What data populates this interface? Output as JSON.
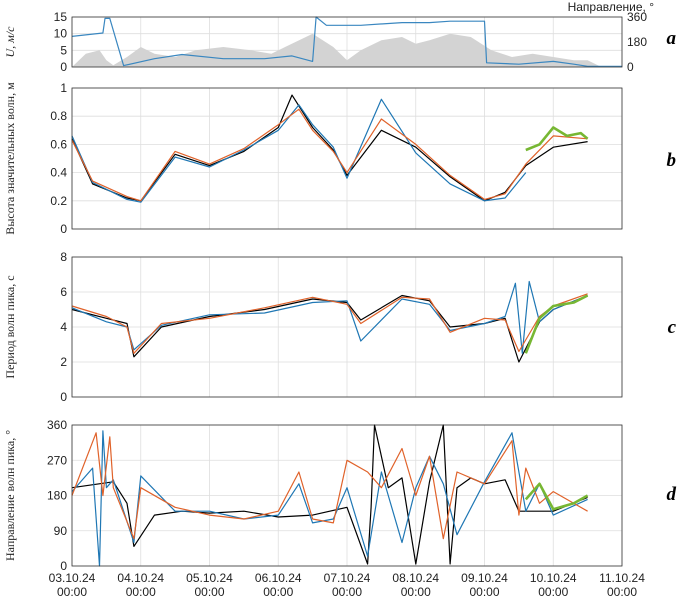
{
  "colors": {
    "black": "#000000",
    "blue": "#1f77b4",
    "orange": "#e0622a",
    "green": "#77b733",
    "fill": "#d3d3d3",
    "direction": "#3a87c0"
  },
  "x_ticks": [
    "03.10.24",
    "04.10.24",
    "05.10.24",
    "06.10.24",
    "07.10.24",
    "08.10.24",
    "09.10.24",
    "10.10.24",
    "11.10.24"
  ],
  "x_tick_time": "00:00",
  "panels": {
    "a": {
      "label": "a",
      "ylabel": "U, м/с",
      "ylabel2": "Направление, °",
      "yticks": [
        "0",
        "5",
        "10",
        "15"
      ],
      "yticks2": [
        "0",
        "180",
        "360"
      ]
    },
    "b": {
      "label": "b",
      "ylabel": "Высота значительных волн, м",
      "yticks": [
        "0",
        "0.2",
        "0.4",
        "0.6",
        "0.8",
        "1"
      ]
    },
    "c": {
      "label": "c",
      "ylabel": "Период волн пика, с",
      "yticks": [
        "0",
        "2",
        "4",
        "6",
        "8"
      ]
    },
    "d": {
      "label": "d",
      "ylabel": "Направление волн пика, °",
      "yticks": [
        "0",
        "90",
        "180",
        "270",
        "360"
      ]
    }
  },
  "chart_data": [
    {
      "type": "area",
      "panel": "a",
      "x_unit": "days since 03.10.24 00:00",
      "xlim": [
        0,
        8
      ],
      "ylim": [
        0,
        15
      ],
      "ylim2": [
        0,
        360
      ],
      "series": [
        {
          "name": "U",
          "axis": "left",
          "style": "area",
          "x": [
            0.0,
            0.2,
            0.4,
            0.5,
            0.6,
            0.8,
            1.0,
            1.2,
            1.5,
            1.8,
            2.2,
            2.6,
            2.9,
            3.1,
            3.5,
            3.8,
            4.0,
            4.2,
            4.5,
            4.8,
            5.0,
            5.2,
            5.5,
            5.8,
            6.1,
            6.4,
            6.7,
            7.0,
            7.3,
            7.5,
            7.7,
            8.0
          ],
          "y": [
            0,
            4,
            5,
            2,
            0.5,
            3,
            6,
            4,
            3,
            5,
            6,
            5,
            4,
            6,
            10,
            6,
            2,
            5,
            8,
            9,
            7,
            8,
            10,
            9,
            5,
            3,
            4,
            3,
            2,
            2,
            0,
            0
          ]
        },
        {
          "name": "Направление",
          "axis": "right",
          "style": "line",
          "x": [
            0.0,
            0.45,
            0.48,
            0.55,
            0.75,
            1.2,
            1.6,
            2.2,
            2.8,
            3.2,
            3.5,
            3.55,
            3.7,
            4.2,
            4.8,
            5.2,
            5.5,
            6.0,
            6.03,
            6.5,
            7.0,
            7.3,
            7.5,
            8.0
          ],
          "y": [
            220,
            245,
            350,
            350,
            10,
            60,
            90,
            60,
            60,
            80,
            40,
            360,
            300,
            300,
            320,
            320,
            330,
            330,
            30,
            20,
            40,
            20,
            5,
            5
          ]
        }
      ]
    },
    {
      "type": "line",
      "panel": "b",
      "x_unit": "days since 03.10.24 00:00",
      "xlim": [
        0,
        8
      ],
      "ylim": [
        0,
        1
      ],
      "series": [
        {
          "color": "black",
          "x": [
            0.0,
            0.3,
            0.8,
            1.0,
            1.5,
            2.0,
            2.5,
            3.0,
            3.2,
            3.5,
            3.8,
            4.0,
            4.5,
            5.0,
            5.5,
            6.0,
            6.3,
            6.6,
            7.0,
            7.5
          ],
          "y": [
            0.64,
            0.32,
            0.22,
            0.2,
            0.53,
            0.45,
            0.55,
            0.72,
            0.95,
            0.72,
            0.56,
            0.38,
            0.7,
            0.58,
            0.37,
            0.2,
            0.26,
            0.45,
            0.58,
            0.62
          ]
        },
        {
          "color": "blue",
          "x": [
            0.0,
            0.3,
            0.8,
            1.0,
            1.5,
            2.0,
            2.5,
            3.0,
            3.3,
            3.5,
            3.8,
            4.0,
            4.5,
            5.0,
            5.5,
            6.0,
            6.3,
            6.6
          ],
          "y": [
            0.66,
            0.33,
            0.21,
            0.19,
            0.51,
            0.44,
            0.56,
            0.7,
            0.88,
            0.74,
            0.58,
            0.36,
            0.92,
            0.54,
            0.32,
            0.2,
            0.22,
            0.4
          ]
        },
        {
          "color": "orange",
          "x": [
            0.0,
            0.3,
            0.8,
            1.0,
            1.5,
            2.0,
            2.5,
            3.0,
            3.3,
            3.5,
            3.8,
            4.0,
            4.5,
            5.0,
            5.5,
            6.0,
            6.3,
            6.6,
            7.0,
            7.5
          ],
          "y": [
            0.63,
            0.34,
            0.23,
            0.2,
            0.55,
            0.46,
            0.57,
            0.74,
            0.85,
            0.7,
            0.55,
            0.4,
            0.78,
            0.6,
            0.38,
            0.21,
            0.25,
            0.46,
            0.66,
            0.64
          ]
        },
        {
          "color": "green",
          "x": [
            6.6,
            6.8,
            7.0,
            7.2,
            7.4,
            7.5
          ],
          "y": [
            0.56,
            0.6,
            0.72,
            0.66,
            0.68,
            0.64
          ]
        }
      ]
    },
    {
      "type": "line",
      "panel": "c",
      "x_unit": "days since 03.10.24 00:00",
      "xlim": [
        0,
        8
      ],
      "ylim": [
        0,
        8
      ],
      "series": [
        {
          "color": "black",
          "x": [
            0.0,
            0.5,
            0.8,
            0.9,
            1.3,
            2.0,
            2.8,
            3.5,
            4.0,
            4.2,
            4.8,
            5.2,
            5.5,
            6.0,
            6.3,
            6.5,
            6.8,
            7.0,
            7.5
          ],
          "y": [
            5.0,
            4.5,
            4.2,
            2.3,
            4.0,
            4.6,
            5.0,
            5.6,
            5.4,
            4.4,
            5.8,
            5.5,
            4.0,
            4.2,
            4.5,
            2.0,
            4.3,
            5.0,
            5.8
          ]
        },
        {
          "color": "blue",
          "x": [
            0.0,
            0.5,
            0.8,
            0.9,
            1.3,
            2.0,
            2.8,
            3.5,
            4.0,
            4.2,
            4.8,
            5.2,
            5.5,
            6.0,
            6.3,
            6.45,
            6.55,
            6.65,
            6.8,
            7.0,
            7.5
          ],
          "y": [
            5.1,
            4.3,
            4.0,
            2.7,
            4.1,
            4.7,
            4.8,
            5.4,
            5.5,
            3.2,
            5.6,
            5.3,
            3.8,
            4.2,
            4.6,
            6.5,
            2.5,
            6.6,
            4.3,
            5.0,
            5.8
          ]
        },
        {
          "color": "orange",
          "x": [
            0.0,
            0.5,
            0.8,
            0.9,
            1.3,
            2.0,
            2.8,
            3.5,
            4.0,
            4.2,
            4.8,
            5.2,
            5.5,
            6.0,
            6.3,
            6.5,
            6.8,
            7.0,
            7.5
          ],
          "y": [
            5.2,
            4.6,
            4.0,
            2.5,
            4.2,
            4.5,
            5.1,
            5.7,
            5.3,
            4.2,
            5.7,
            5.6,
            3.7,
            4.5,
            4.4,
            2.6,
            4.6,
            5.2,
            5.9
          ]
        },
        {
          "color": "green",
          "x": [
            6.6,
            6.8,
            7.0,
            7.3,
            7.5
          ],
          "y": [
            2.5,
            4.5,
            5.2,
            5.4,
            5.8
          ]
        }
      ]
    },
    {
      "type": "line",
      "panel": "d",
      "x_unit": "days since 03.10.24 00:00",
      "xlim": [
        0,
        8
      ],
      "ylim": [
        0,
        360
      ],
      "series": [
        {
          "color": "black",
          "x": [
            0.0,
            0.6,
            0.8,
            0.9,
            1.2,
            1.6,
            2.0,
            2.5,
            3.0,
            3.5,
            4.0,
            4.3,
            4.35,
            4.4,
            4.6,
            4.8,
            5.0,
            5.2,
            5.4,
            5.5,
            5.6,
            5.8,
            6.0,
            6.3,
            6.5,
            6.8,
            7.0,
            7.5
          ],
          "y": [
            200,
            215,
            160,
            50,
            130,
            140,
            135,
            140,
            125,
            130,
            150,
            5,
            150,
            360,
            200,
            225,
            5,
            215,
            360,
            5,
            200,
            225,
            210,
            220,
            140,
            140,
            140,
            175
          ]
        },
        {
          "color": "blue",
          "x": [
            0.0,
            0.3,
            0.4,
            0.45,
            0.5,
            0.6,
            0.9,
            1.0,
            1.5,
            2.0,
            2.5,
            3.0,
            3.3,
            3.5,
            3.8,
            4.0,
            4.3,
            4.5,
            4.8,
            5.0,
            5.2,
            5.4,
            5.6,
            6.0,
            6.4,
            6.6,
            6.8,
            7.0,
            7.5
          ],
          "y": [
            190,
            250,
            0,
            345,
            200,
            220,
            60,
            230,
            140,
            140,
            120,
            130,
            210,
            110,
            120,
            200,
            25,
            240,
            60,
            200,
            280,
            210,
            80,
            215,
            340,
            140,
            210,
            130,
            170
          ]
        },
        {
          "color": "orange",
          "x": [
            0.0,
            0.35,
            0.45,
            0.55,
            0.6,
            0.9,
            1.0,
            1.5,
            2.0,
            2.5,
            3.0,
            3.3,
            3.5,
            3.8,
            4.0,
            4.3,
            4.5,
            4.8,
            5.0,
            5.2,
            5.4,
            5.6,
            6.0,
            6.4,
            6.5,
            6.6,
            6.8,
            7.0,
            7.5
          ],
          "y": [
            180,
            340,
            180,
            330,
            200,
            70,
            200,
            150,
            130,
            120,
            140,
            240,
            120,
            110,
            270,
            240,
            200,
            300,
            180,
            280,
            70,
            240,
            210,
            320,
            130,
            250,
            160,
            190,
            140
          ]
        },
        {
          "color": "green",
          "x": [
            6.6,
            6.8,
            7.0,
            7.3,
            7.5
          ],
          "y": [
            170,
            210,
            145,
            160,
            180
          ]
        }
      ]
    }
  ]
}
